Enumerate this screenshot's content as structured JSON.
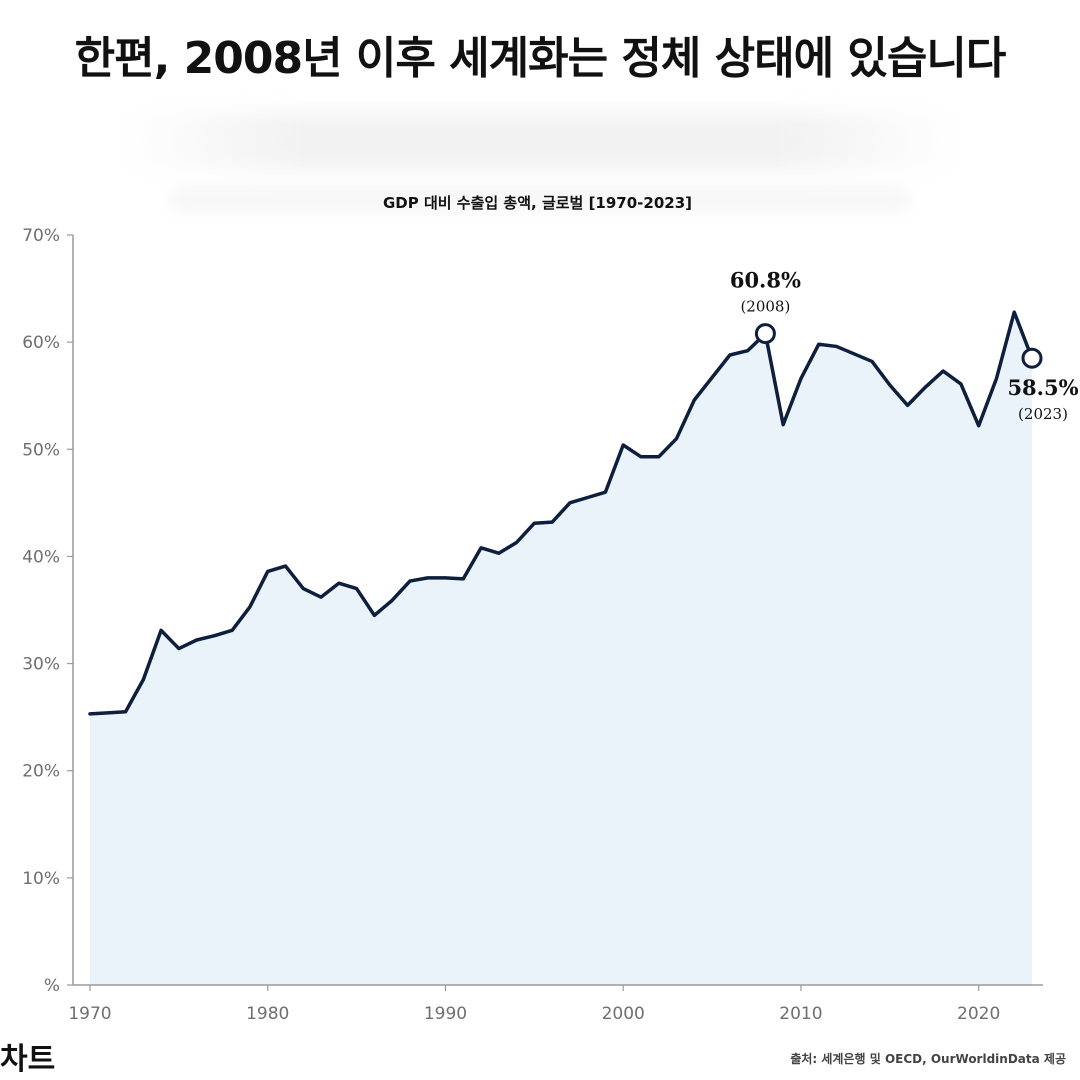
{
  "headline": "한편, 2008년 이후 세계화는 정체 상태에 있습니다",
  "brand": "차트",
  "source": "출처: 세계은행 및 OECD, OurWorldinData 제공",
  "colors": {
    "line": "#0d1f3c",
    "fill": "#eaf2fa",
    "axis": "#9a9a9a",
    "tick_text": "#6f6f6f"
  },
  "chart_data": {
    "type": "area",
    "title": "GDP 대비 수출입 총액, 글로벌 [1970-2023]",
    "xlabel": "",
    "ylabel": "",
    "xlim": [
      1970,
      2023
    ],
    "ylim": [
      0,
      70
    ],
    "grid": false,
    "x_ticks": [
      1970,
      1980,
      1990,
      2000,
      2010,
      2020
    ],
    "x_tick_labels": [
      "1970",
      "1980",
      "1990",
      "2000",
      "2010",
      "2020"
    ],
    "y_ticks": [
      0,
      10,
      20,
      30,
      40,
      50,
      60,
      70
    ],
    "y_tick_labels": [
      "%",
      "10%",
      "20%",
      "30%",
      "40%",
      "50%",
      "60%",
      "70%"
    ],
    "x": [
      1970,
      1971,
      1972,
      1973,
      1974,
      1975,
      1976,
      1977,
      1978,
      1979,
      1980,
      1981,
      1982,
      1983,
      1984,
      1985,
      1986,
      1987,
      1988,
      1989,
      1990,
      1991,
      1992,
      1993,
      1994,
      1995,
      1996,
      1997,
      1998,
      1999,
      2000,
      2001,
      2002,
      2003,
      2004,
      2005,
      2006,
      2007,
      2008,
      2009,
      2010,
      2011,
      2012,
      2013,
      2014,
      2015,
      2016,
      2017,
      2018,
      2019,
      2020,
      2021,
      2022,
      2023
    ],
    "series": [
      {
        "values": [
          25.3,
          25.4,
          25.5,
          28.5,
          33.1,
          31.4,
          32.2,
          32.6,
          33.1,
          35.3,
          38.6,
          39.1,
          37.0,
          36.2,
          37.5,
          37.0,
          34.5,
          35.9,
          37.7,
          38.0,
          38.0,
          37.9,
          40.8,
          40.3,
          41.3,
          43.1,
          43.2,
          45.0,
          45.5,
          46.0,
          50.4,
          49.3,
          49.3,
          51.0,
          54.6,
          56.7,
          58.8,
          59.2,
          60.8,
          52.3,
          56.6,
          59.8,
          59.6,
          58.9,
          58.2,
          56.0,
          54.1,
          55.8,
          57.3,
          56.1,
          52.2,
          56.6,
          62.8,
          58.5
        ]
      }
    ],
    "annotations": [
      {
        "x": 2008,
        "y": 60.8,
        "label": "60.8%",
        "sublabel": "(2008)"
      },
      {
        "x": 2023,
        "y": 58.5,
        "label": "58.5%",
        "sublabel": "(2023)"
      }
    ]
  }
}
